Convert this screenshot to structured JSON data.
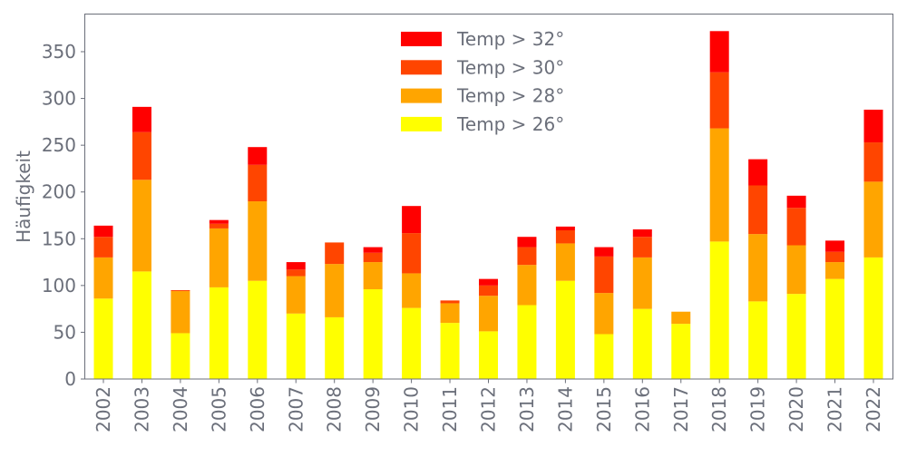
{
  "chart_data": {
    "type": "bar",
    "stacked": true,
    "title": "",
    "xlabel": "",
    "ylabel": "Häufigkeit",
    "ylim": [
      0,
      390
    ],
    "yticks": [
      0,
      50,
      100,
      150,
      200,
      250,
      300,
      350
    ],
    "legend_position": "top-center",
    "grid": false,
    "categories": [
      "2002",
      "2003",
      "2004",
      "2005",
      "2006",
      "2007",
      "2008",
      "2009",
      "2010",
      "2011",
      "2012",
      "2013",
      "2014",
      "2015",
      "2016",
      "2017",
      "2018",
      "2019",
      "2020",
      "2021",
      "2022"
    ],
    "series": [
      {
        "name": "Temp > 26°",
        "color": "#ffff00",
        "values": [
          86,
          115,
          49,
          98,
          105,
          70,
          66,
          96,
          76,
          60,
          51,
          79,
          105,
          48,
          75,
          59,
          147,
          83,
          91,
          107,
          130
        ]
      },
      {
        "name": "Temp > 28°",
        "color": "#ffa500",
        "values": [
          44,
          98,
          45,
          63,
          85,
          40,
          57,
          29,
          37,
          21,
          38,
          43,
          40,
          44,
          55,
          13,
          121,
          72,
          52,
          18,
          81
        ]
      },
      {
        "name": "Temp > 30°",
        "color": "#ff4500",
        "values": [
          22,
          51,
          1,
          5,
          39,
          7,
          23,
          10,
          43,
          3,
          11,
          19,
          14,
          39,
          22,
          0,
          60,
          52,
          40,
          11,
          42
        ]
      },
      {
        "name": "Temp > 32°",
        "color": "#ff0000",
        "values": [
          12,
          27,
          0,
          4,
          19,
          8,
          0,
          6,
          29,
          0,
          7,
          11,
          4,
          10,
          8,
          0,
          44,
          28,
          13,
          12,
          35
        ]
      }
    ]
  }
}
